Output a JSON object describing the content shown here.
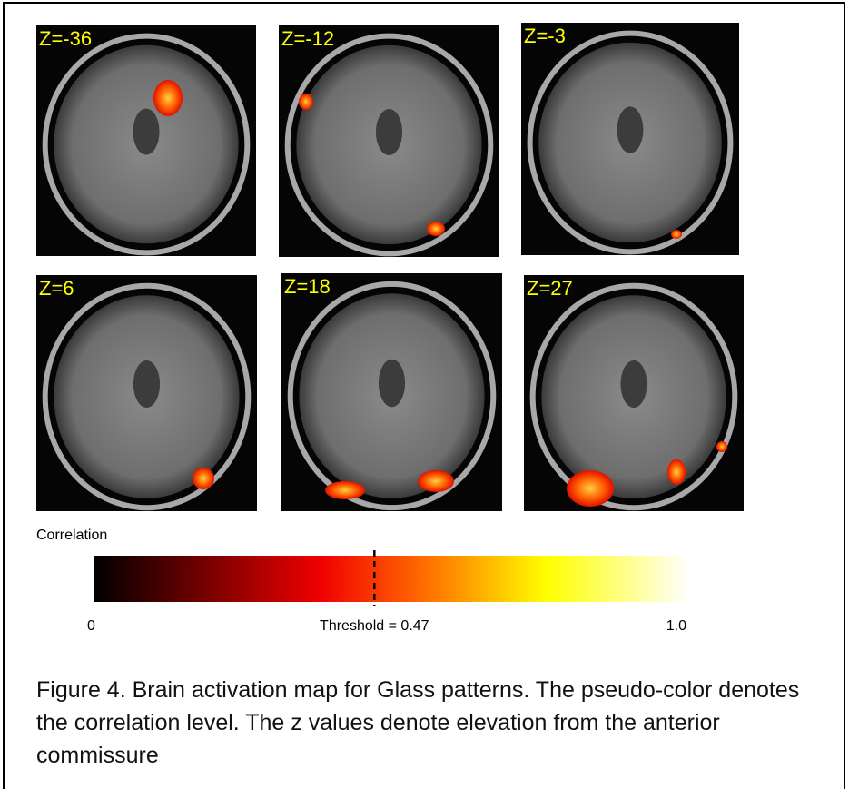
{
  "figure": {
    "panels": [
      {
        "label": "Z=-36"
      },
      {
        "label": "Z=-12"
      },
      {
        "label": "Z=-3"
      },
      {
        "label": "Z=6"
      },
      {
        "label": "Z=18"
      },
      {
        "label": "Z=27"
      }
    ],
    "colorbar": {
      "title": "Correlation",
      "min": {
        "value": 0,
        "label": "0"
      },
      "max": {
        "value": 1.0,
        "label": "1.0"
      },
      "threshold": {
        "value": 0.47,
        "label": "Threshold = 0.47"
      }
    },
    "caption": "Figure 4. Brain activation map for Glass patterns. The pseudo-color denotes the correlation level. The z values denote elevation from the anterior commissure"
  }
}
